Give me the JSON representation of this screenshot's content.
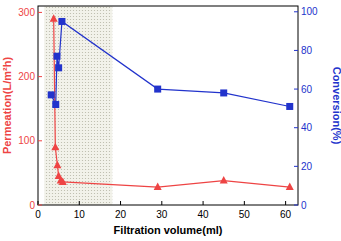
{
  "chart_data": {
    "type": "line",
    "x_label": "Filtration volume(ml)",
    "y_label": "Permeation(L/m²h)",
    "y2_label": "Conversion(%)",
    "xlim": [
      0,
      63
    ],
    "xticks": [
      0,
      10,
      20,
      30,
      40,
      50,
      60
    ],
    "ylim": [
      0,
      310
    ],
    "yticks": [
      0,
      100,
      200,
      300
    ],
    "y2lim": [
      0,
      103
    ],
    "y2ticks": [
      0,
      20,
      40,
      60,
      80,
      100
    ],
    "shaded_x": [
      1.5,
      18
    ],
    "series": [
      {
        "color": "#ee4444",
        "marker": "triangle",
        "axis": "y",
        "x": [
          3.8,
          4.2,
          4.7,
          5.0,
          5.5,
          6.0,
          29,
          45,
          61
        ],
        "values": [
          290,
          90,
          62,
          45,
          38,
          36,
          28,
          38,
          28
        ]
      },
      {
        "color": "#2233cc",
        "marker": "square",
        "axis": "y2",
        "x": [
          3.2,
          4.3,
          4.6,
          5.0,
          5.8,
          29,
          45,
          61
        ],
        "values": [
          57,
          52,
          77,
          71,
          95,
          60,
          58,
          51
        ]
      }
    ]
  }
}
